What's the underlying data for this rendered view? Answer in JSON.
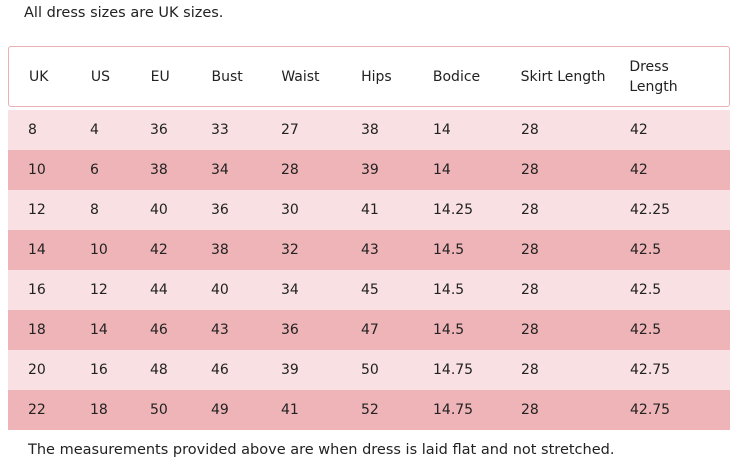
{
  "note_top": "All dress sizes are UK sizes.",
  "table": {
    "header": [
      "UK",
      "US",
      "EU",
      "Bust",
      "Waist",
      "Hips",
      "Bodice",
      "Skirt Length",
      "Dress Length"
    ],
    "rows": [
      [
        "8",
        "4",
        "36",
        "33",
        "27",
        "38",
        "14",
        "28",
        "42"
      ],
      [
        "10",
        "6",
        "38",
        "34",
        "28",
        "39",
        "14",
        "28",
        "42"
      ],
      [
        "12",
        "8",
        "40",
        "36",
        "30",
        "41",
        "14.25",
        "28",
        "42.25"
      ],
      [
        "14",
        "10",
        "42",
        "38",
        "32",
        "43",
        "14.5",
        "28",
        "42.5"
      ],
      [
        "16",
        "12",
        "44",
        "40",
        "34",
        "45",
        "14.5",
        "28",
        "42.5"
      ],
      [
        "18",
        "14",
        "46",
        "43",
        "36",
        "47",
        "14.5",
        "28",
        "42.5"
      ],
      [
        "20",
        "16",
        "48",
        "46",
        "39",
        "50",
        "14.75",
        "28",
        "42.75"
      ],
      [
        "22",
        "18",
        "50",
        "49",
        "41",
        "52",
        "14.75",
        "28",
        "42.75"
      ]
    ]
  },
  "note_bottom": "The measurements provided above are when dress is laid flat and not stretched."
}
